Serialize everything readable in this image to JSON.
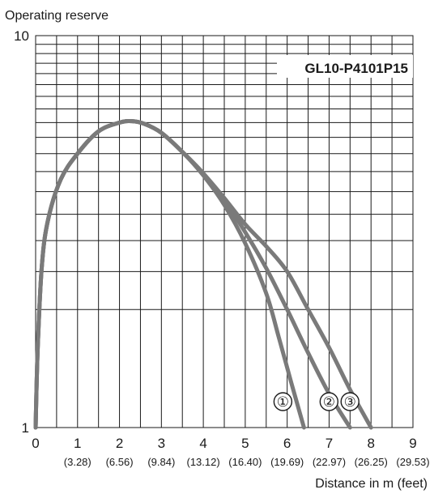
{
  "chart_data": {
    "type": "line",
    "title": "",
    "ylabel": "Operating reserve",
    "xlabel": "Distance in m (feet)",
    "y_scale": "log",
    "ylim": [
      1,
      10
    ],
    "xlim": [
      0,
      9
    ],
    "grid": true,
    "y_major_ticks": [
      {
        "value": 1,
        "label": "1"
      },
      {
        "value": 10,
        "label": "10"
      }
    ],
    "y_gridlines": [
      2,
      3,
      4,
      5,
      6,
      7,
      8,
      9,
      10
    ],
    "x_ticks": [
      {
        "value": 0,
        "label": "0",
        "sub": ""
      },
      {
        "value": 1,
        "label": "1",
        "sub": "(3.28)"
      },
      {
        "value": 2,
        "label": "2",
        "sub": "(6.56)"
      },
      {
        "value": 3,
        "label": "3",
        "sub": "(9.84)"
      },
      {
        "value": 4,
        "label": "4",
        "sub": "(13.12)"
      },
      {
        "value": 5,
        "label": "5",
        "sub": "(16.40)"
      },
      {
        "value": 6,
        "label": "6",
        "sub": "(19.69)"
      },
      {
        "value": 7,
        "label": "7",
        "sub": "(22.97)"
      },
      {
        "value": 8,
        "label": "8",
        "sub": "(26.25)"
      },
      {
        "value": 9,
        "label": "9",
        "sub": "(29.53)"
      }
    ],
    "x_minor_gridlines": [
      0.5,
      1.5,
      2.5,
      3.5,
      4.5,
      5.5,
      6.5,
      7.5,
      8.5
    ],
    "model_label": "GL10-P4101P15",
    "series": [
      {
        "name": "①",
        "x": [
          0.0,
          0.05,
          0.15,
          0.3,
          0.6,
          1.0,
          1.5,
          2.0,
          2.3,
          2.6,
          3.0,
          3.5,
          4.0,
          4.5,
          5.0,
          5.5,
          5.8,
          6.1,
          6.4
        ],
        "y": [
          1.0,
          1.6,
          2.6,
          3.4,
          4.3,
          5.0,
          5.7,
          6.0,
          6.05,
          5.95,
          5.65,
          5.05,
          4.4,
          3.7,
          2.95,
          2.2,
          1.7,
          1.3,
          1.0
        ]
      },
      {
        "name": "②",
        "x": [
          0.0,
          0.05,
          0.15,
          0.3,
          0.6,
          1.0,
          1.5,
          2.0,
          2.3,
          2.6,
          3.0,
          3.5,
          4.0,
          4.5,
          5.0,
          5.5,
          6.0,
          6.5,
          7.0,
          7.5
        ],
        "y": [
          1.0,
          1.6,
          2.6,
          3.4,
          4.3,
          5.0,
          5.7,
          6.0,
          6.05,
          5.95,
          5.65,
          5.05,
          4.45,
          3.8,
          3.15,
          2.55,
          2.0,
          1.55,
          1.22,
          1.0
        ]
      },
      {
        "name": "③",
        "x": [
          0.0,
          0.05,
          0.15,
          0.3,
          0.6,
          1.0,
          1.5,
          2.0,
          2.3,
          2.6,
          3.0,
          3.5,
          4.0,
          4.5,
          5.0,
          5.5,
          6.0,
          6.5,
          7.0,
          7.5,
          8.0
        ],
        "y": [
          1.0,
          1.6,
          2.6,
          3.4,
          4.3,
          5.0,
          5.7,
          6.0,
          6.05,
          5.95,
          5.65,
          5.05,
          4.45,
          3.85,
          3.3,
          2.9,
          2.5,
          2.0,
          1.6,
          1.25,
          1.0
        ]
      }
    ]
  }
}
